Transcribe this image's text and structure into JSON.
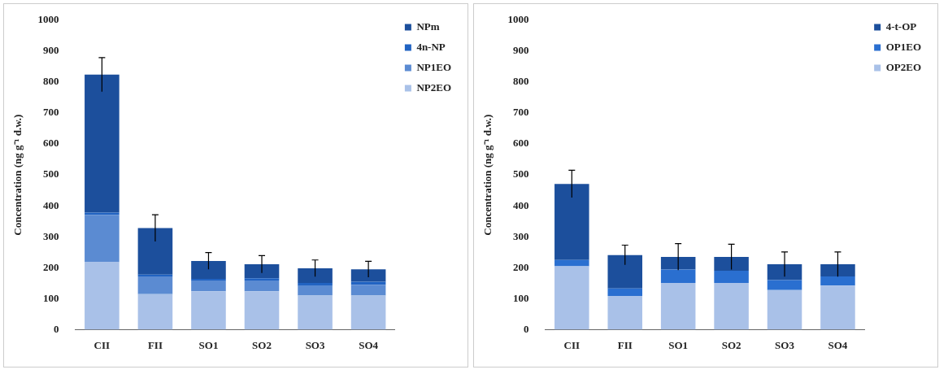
{
  "chart_data": [
    {
      "type": "bar",
      "stacked": true,
      "categories": [
        "CII",
        "FII",
        "SO1",
        "SO2",
        "SO3",
        "SO4"
      ],
      "ylabel": "Concentration (ng g⁻¹ d.w.)",
      "ylim": [
        0,
        1000
      ],
      "yticks": [
        0,
        100,
        200,
        300,
        400,
        500,
        600,
        700,
        800,
        900,
        1000
      ],
      "grid": false,
      "legend": "top right",
      "series": [
        {
          "name": "NP2EO",
          "color": "#a9c1e8",
          "values": [
            218,
            115,
            124,
            124,
            110,
            110
          ]
        },
        {
          "name": "NP1EO",
          "color": "#5b8bd2",
          "values": [
            153,
            57,
            33,
            35,
            31,
            35
          ]
        },
        {
          "name": "4n-NP",
          "color": "#2163c2",
          "values": [
            7,
            6,
            7,
            7,
            10,
            10
          ]
        },
        {
          "name": "NPm",
          "color": "#1c4f9c",
          "values": [
            446,
            150,
            58,
            45,
            47,
            40
          ],
          "errors": [
            55,
            43,
            27,
            28,
            27,
            26
          ]
        }
      ]
    },
    {
      "type": "bar",
      "stacked": true,
      "categories": [
        "CII",
        "FII",
        "SO1",
        "SO2",
        "SO3",
        "SO4"
      ],
      "ylabel": "Concentration (ng g⁻¹ d.w.)",
      "ylim": [
        0,
        1000
      ],
      "yticks": [
        0,
        100,
        200,
        300,
        400,
        500,
        600,
        700,
        800,
        900,
        1000
      ],
      "grid": false,
      "legend": "top right",
      "series": [
        {
          "name": "OP2EO",
          "color": "#a9c1e8",
          "values": [
            205,
            109,
            151,
            151,
            128,
            142
          ]
        },
        {
          "name": "OP1EO",
          "color": "#2a6fd0",
          "values": [
            20,
            24,
            43,
            39,
            32,
            30
          ]
        },
        {
          "name": "4-t-OP",
          "color": "#1c4f9c",
          "values": [
            246,
            108,
            41,
            45,
            51,
            39
          ],
          "errors": [
            44,
            32,
            43,
            41,
            40,
            40
          ]
        }
      ]
    }
  ]
}
